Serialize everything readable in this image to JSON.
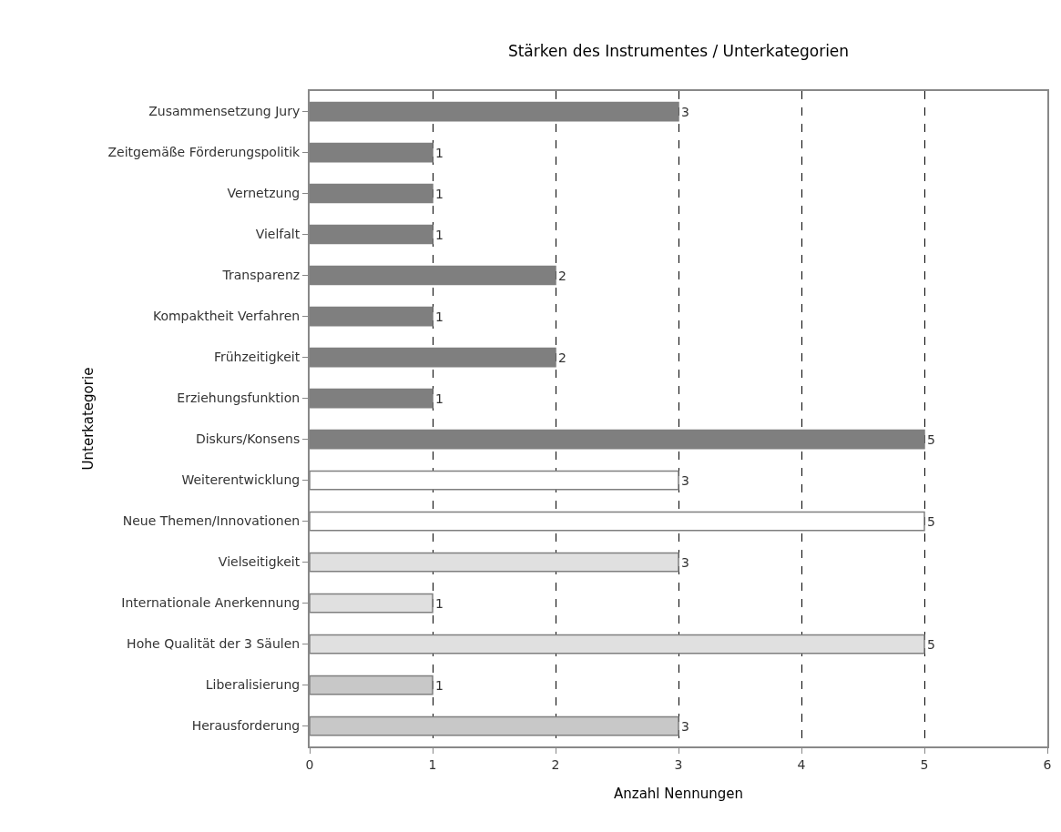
{
  "chart_data": {
    "type": "bar",
    "orientation": "horizontal",
    "title": "Stärken des Instrumentes / Unterkategorien",
    "xlabel": "Anzahl Nennungen",
    "ylabel": "Unterkategorie",
    "categories": [
      "Zusammensetzung Jury",
      "Zeitgemäße Förderungspolitik",
      "Vernetzung",
      "Vielfalt",
      "Transparenz",
      "Kompaktheit Verfahren",
      "Frühzeitigkeit",
      "Erziehungsfunktion",
      "Diskurs/Konsens",
      "Weiterentwicklung",
      "Neue Themen/Innovationen",
      "Vielseitigkeit",
      "Internationale Anerkennung",
      "Hohe Qualität der 3 Säulen",
      "Liberalisierung",
      "Herausforderung"
    ],
    "values": [
      3,
      1,
      1,
      1,
      2,
      1,
      2,
      1,
      5,
      3,
      5,
      3,
      1,
      5,
      1,
      3
    ],
    "colors": [
      "#7f7f7f",
      "#7f7f7f",
      "#7f7f7f",
      "#7f7f7f",
      "#7f7f7f",
      "#7f7f7f",
      "#7f7f7f",
      "#7f7f7f",
      "#7f7f7f",
      "#ffffff",
      "#ffffff",
      "#e0e0e0",
      "#e0e0e0",
      "#e0e0e0",
      "#c8c8c8",
      "#c8c8c8"
    ],
    "xlim": [
      0,
      6
    ],
    "xticks": [
      0,
      1,
      2,
      3,
      4,
      5,
      6
    ],
    "grid": "x",
    "data_labels": true,
    "legend": false
  }
}
